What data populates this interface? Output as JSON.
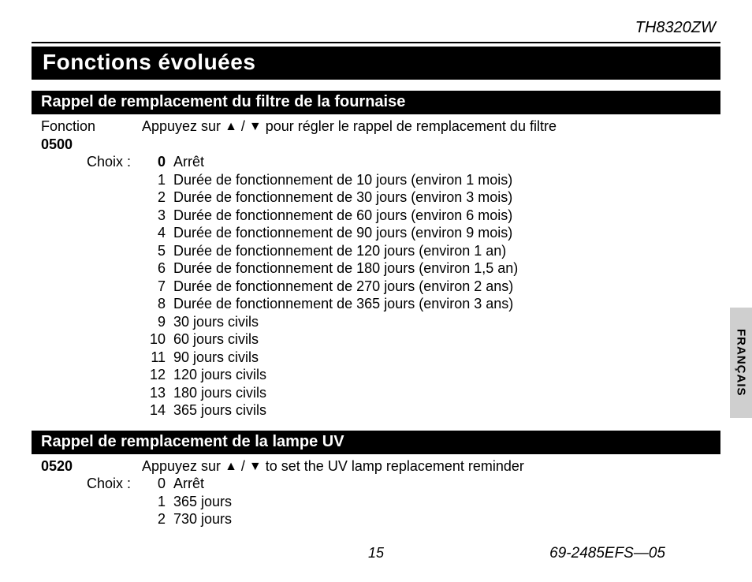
{
  "header": {
    "model": "TH8320ZW"
  },
  "title": "Fonctions évoluées",
  "sideTab": "FRANÇAIS",
  "sections": [
    {
      "heading": "Rappel de remplacement du filtre de la fournaise",
      "functionLabel": "Fonction",
      "functionCode": "0500",
      "instructionPrefix": "Appuyez sur ",
      "instructionMid": " / ",
      "instructionSuffix": " pour régler le rappel de remplacement du filtre",
      "choixLabel": "Choix :",
      "defaultIndex": 0,
      "options": [
        {
          "n": "0",
          "d": "Arrêt"
        },
        {
          "n": "1",
          "d": "Durée de fonctionnement de 10 jours (environ 1 mois)"
        },
        {
          "n": "2",
          "d": "Durée de fonctionnement de 30 jours (environ 3 mois)"
        },
        {
          "n": "3",
          "d": "Durée de fonctionnement de 60 jours (environ 6 mois)"
        },
        {
          "n": "4",
          "d": "Durée de fonctionnement de 90 jours (environ 9 mois)"
        },
        {
          "n": "5",
          "d": "Durée de fonctionnement de 120 jours (environ 1 an)"
        },
        {
          "n": "6",
          "d": "Durée de fonctionnement de 180 jours (environ 1,5 an)"
        },
        {
          "n": "7",
          "d": "Durée de fonctionnement de 270 jours (environ 2 ans)"
        },
        {
          "n": "8",
          "d": "Durée de fonctionnement de 365 jours (environ 3 ans)"
        },
        {
          "n": "9",
          "d": "30 jours civils"
        },
        {
          "n": "10",
          "d": "60 jours civils"
        },
        {
          "n": "11",
          "d": "90 jours civils"
        },
        {
          "n": "12",
          "d": "120 jours civils"
        },
        {
          "n": "13",
          "d": "180 jours civils"
        },
        {
          "n": "14",
          "d": "365 jours civils"
        }
      ]
    },
    {
      "heading": "Rappel de remplacement de la lampe UV",
      "functionLabel": "",
      "functionCode": "0520",
      "instructionPrefix": "Appuyez sur ",
      "instructionMid": " / ",
      "instructionSuffix": " to set the UV lamp replacement reminder",
      "choixLabel": "Choix :",
      "defaultIndex": -1,
      "options": [
        {
          "n": "0",
          "d": "Arrêt"
        },
        {
          "n": "1",
          "d": "365 jours"
        },
        {
          "n": "2",
          "d": "730 jours"
        }
      ]
    }
  ],
  "footer": {
    "page": "15",
    "doc": "69-2485EFS—05"
  },
  "glyphs": {
    "up": "▲",
    "down": "▼"
  }
}
